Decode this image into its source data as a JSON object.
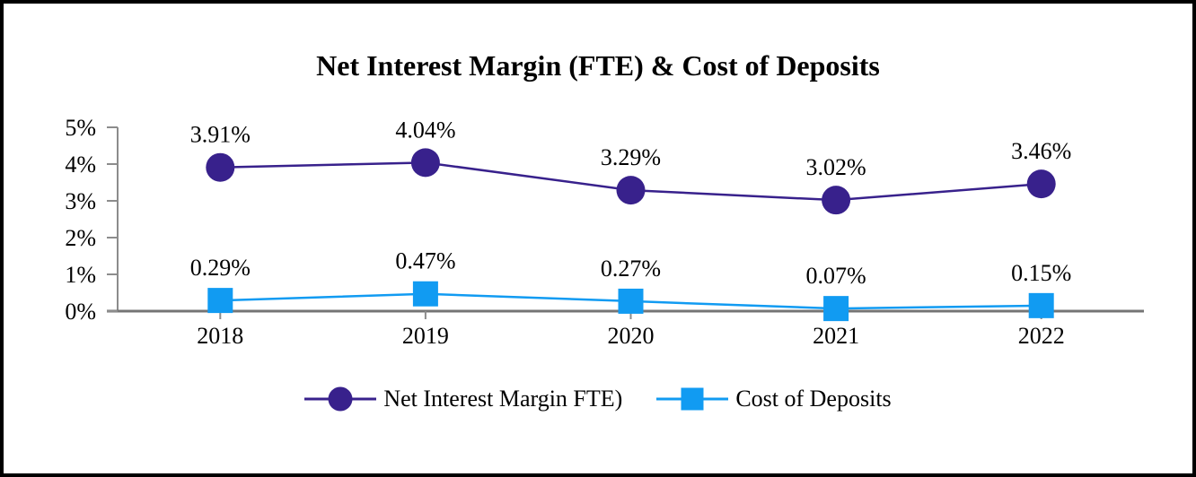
{
  "chart_data": {
    "type": "line",
    "title": "Net Interest Margin (FTE) & Cost of Deposits",
    "categories": [
      "2018",
      "2019",
      "2020",
      "2021",
      "2022"
    ],
    "series": [
      {
        "name": "Net Interest Margin FTE)",
        "marker": "circle",
        "color": "#38218C",
        "values": [
          3.91,
          4.04,
          3.29,
          3.02,
          3.46
        ],
        "labels": [
          "3.91%",
          "4.04%",
          "3.29%",
          "3.02%",
          "3.46%"
        ]
      },
      {
        "name": "Cost of Deposits",
        "marker": "square",
        "color": "#119BF2",
        "values": [
          0.29,
          0.47,
          0.27,
          0.07,
          0.15
        ],
        "labels": [
          "0.29%",
          "0.47%",
          "0.27%",
          "0.07%",
          "0.15%"
        ]
      }
    ],
    "y_axis": {
      "min": 0,
      "max": 5,
      "tick_labels": [
        "0%",
        "1%",
        "2%",
        "3%",
        "4%",
        "5%"
      ]
    },
    "legend_position": "bottom",
    "grid": false,
    "colors": {
      "vertical_axis": "#8C8C8C",
      "horizontal_axis": "#757575",
      "text": "#000000"
    }
  }
}
